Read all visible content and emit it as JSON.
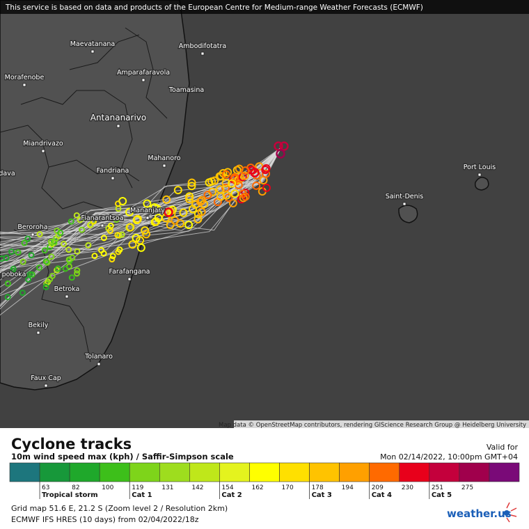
{
  "banner": "This service is based on data and products of the European Centre for Medium-range Weather Forecasts (ECMWF)",
  "map": {
    "places": [
      "Maevatanana",
      "Ambodifotatra",
      "Amparafaravola",
      "Morafenobe",
      "Toamasina",
      "Antananarivo",
      "Miandrivazo",
      "Mahanoro",
      "Fandriana",
      "dava",
      "Port Louis",
      "Saint-Denis",
      "Beroroha",
      "Fianarantsoa",
      "Mananjary",
      "Farafangana",
      "poboka",
      "Betroka",
      "Bekily",
      "Tolanaro",
      "Faux Cap"
    ],
    "attribution": "Map data © OpenStreetMap contributors, rendering GIScience Research Group @ Heidelberg University"
  },
  "panel": {
    "title": "Cyclone tracks",
    "subtitle": "10m wind speed max (kph) / Saffir-Simpson scale",
    "valid_label": "Valid for",
    "valid_time": "Mon 02/14/2022, 10:00pm GMT+04",
    "legend": {
      "colors": [
        "#1d767d",
        "#17983a",
        "#1fa82b",
        "#3dbf1a",
        "#7ed41a",
        "#9edd1e",
        "#bfe71a",
        "#e4f31e",
        "#ffff00",
        "#ffe000",
        "#ffc300",
        "#ffa000",
        "#ff6a00",
        "#e8001b",
        "#c4003c",
        "#a0004c",
        "#7a0a78"
      ],
      "ticks": [
        63,
        82,
        100,
        119,
        131,
        142,
        154,
        162,
        170,
        178,
        194,
        209,
        230,
        251,
        275
      ],
      "categories": [
        "Tropical storm",
        "Cat 1",
        "Cat 2",
        "Cat 3",
        "Cat 4",
        "Cat 5"
      ]
    },
    "grid_info": "Grid map 51.6 E, 21.2 S (Zoom level 2 / Resolution 2km)",
    "model_info": "ECMWF IFS HRES (10 days) from 02/04/2022/18z",
    "logo": "weather.us"
  }
}
